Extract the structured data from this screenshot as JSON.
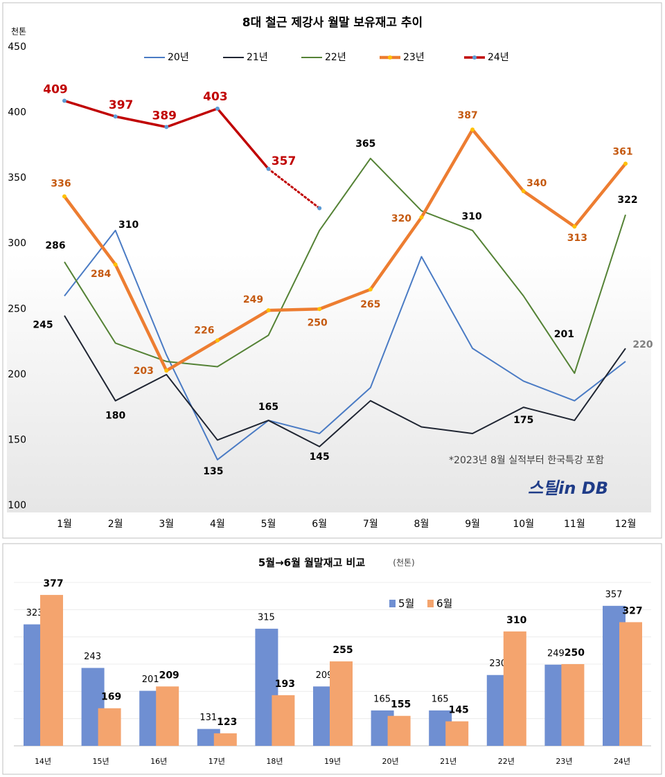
{
  "chart_data": [
    {
      "type": "line",
      "title": "8대 철근 제강사 월말 보유재고 추이",
      "y_unit": "천톤",
      "annotation": "*2023년 8월 실적부터 한국특강 포함",
      "watermark": "스틸in DB",
      "categories": [
        "1월",
        "2월",
        "3월",
        "4월",
        "5월",
        "6월",
        "7월",
        "8월",
        "9월",
        "10월",
        "11월",
        "12월"
      ],
      "ylim": [
        100,
        450
      ],
      "yticks": [
        100,
        150,
        200,
        250,
        300,
        350,
        400,
        450
      ],
      "legend": "top",
      "series": [
        {
          "name": "20년",
          "color": "#4a7bc4",
          "label_color": "#000000",
          "values": [
            260,
            310,
            215,
            135,
            165,
            155,
            190,
            290,
            220,
            195,
            180,
            210
          ],
          "value_labels": [
            null,
            "310",
            null,
            "135",
            "165",
            null,
            null,
            null,
            null,
            null,
            null,
            null
          ]
        },
        {
          "name": "21년",
          "color": "#1f2532",
          "label_color": "#000000",
          "values": [
            245,
            180,
            200,
            150,
            165,
            145,
            180,
            160,
            155,
            175,
            165,
            220
          ],
          "value_labels": [
            "245",
            "180",
            null,
            null,
            null,
            "145",
            null,
            null,
            null,
            "175",
            null,
            "220"
          ]
        },
        {
          "name": "22년",
          "color": "#548235",
          "label_color": "#000000",
          "values": [
            286,
            224,
            210,
            206,
            230,
            310,
            365,
            325,
            310,
            260,
            201,
            322
          ],
          "value_labels": [
            "286",
            null,
            null,
            null,
            null,
            null,
            "365",
            null,
            "310",
            null,
            "201",
            "322"
          ]
        },
        {
          "name": "23년",
          "color": "#ed7d31",
          "marker_color": "#ffc000",
          "label_color": "#c55a11",
          "values": [
            336,
            284,
            203,
            226,
            249,
            250,
            265,
            320,
            387,
            340,
            313,
            361
          ],
          "value_labels": [
            "336",
            "284",
            "203",
            "226",
            "249",
            "250",
            "265",
            "320",
            "387",
            "340",
            "313",
            "361"
          ]
        },
        {
          "name": "24년",
          "color": "#c00000",
          "marker_color": "#5b9bd5",
          "label_color": "#c00000",
          "dotted_from": 4,
          "values": [
            409,
            397,
            389,
            403,
            357,
            327,
            null,
            null,
            null,
            null,
            null,
            null
          ],
          "value_labels": [
            "409",
            "397",
            "389",
            "403",
            "357",
            null,
            null,
            null,
            null,
            null,
            null,
            null
          ]
        }
      ]
    },
    {
      "type": "bar",
      "title": "5월→6월 월말재고 비교",
      "y_unit": "(천톤)",
      "categories": [
        "14년",
        "15년",
        "16년",
        "17년",
        "18년",
        "19년",
        "20년",
        "21년",
        "22년",
        "23년",
        "24년"
      ],
      "ylim": [
        100,
        400
      ],
      "yticks": [
        100,
        150,
        200,
        250,
        300,
        350,
        400
      ],
      "show_ytick_labels": false,
      "grid": true,
      "series": [
        {
          "name": "5월",
          "color": "#6f8fd2",
          "values": [
            323,
            243,
            201,
            131,
            315,
            209,
            165,
            165,
            230,
            249,
            357
          ]
        },
        {
          "name": "6월",
          "color": "#f4a46e",
          "values": [
            377,
            169,
            209,
            123,
            193,
            255,
            155,
            145,
            310,
            250,
            327
          ]
        }
      ]
    }
  ]
}
